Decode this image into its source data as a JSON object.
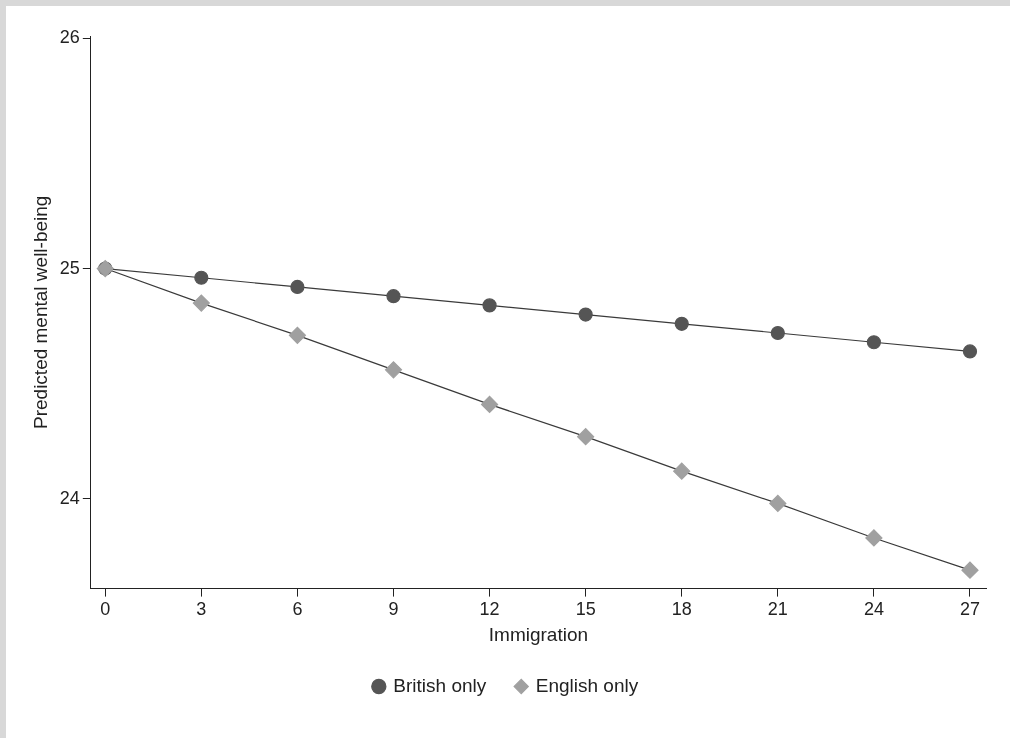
{
  "chart_data": {
    "type": "line",
    "xlabel": "Immigration",
    "ylabel": "Predicted mental well-being",
    "x": [
      0,
      3,
      6,
      9,
      12,
      15,
      18,
      21,
      24,
      27
    ],
    "series": [
      {
        "name": "British only",
        "color": "#555555",
        "marker": "circle",
        "values": [
          25.0,
          24.96,
          24.92,
          24.88,
          24.84,
          24.8,
          24.76,
          24.72,
          24.68,
          24.64
        ]
      },
      {
        "name": "English only",
        "color": "#a0a0a0",
        "marker": "diamond",
        "values": [
          25.0,
          24.85,
          24.71,
          24.56,
          24.41,
          24.27,
          24.12,
          23.98,
          23.83,
          23.69
        ]
      }
    ],
    "xlim": [
      -0.45,
      27.5
    ],
    "xticks": [
      0,
      3,
      6,
      9,
      12,
      15,
      18,
      21,
      24,
      27
    ],
    "ylim": [
      23.61,
      26.01
    ],
    "yticks": [
      24,
      25,
      26
    ],
    "grid": false,
    "legend": "bottom"
  }
}
